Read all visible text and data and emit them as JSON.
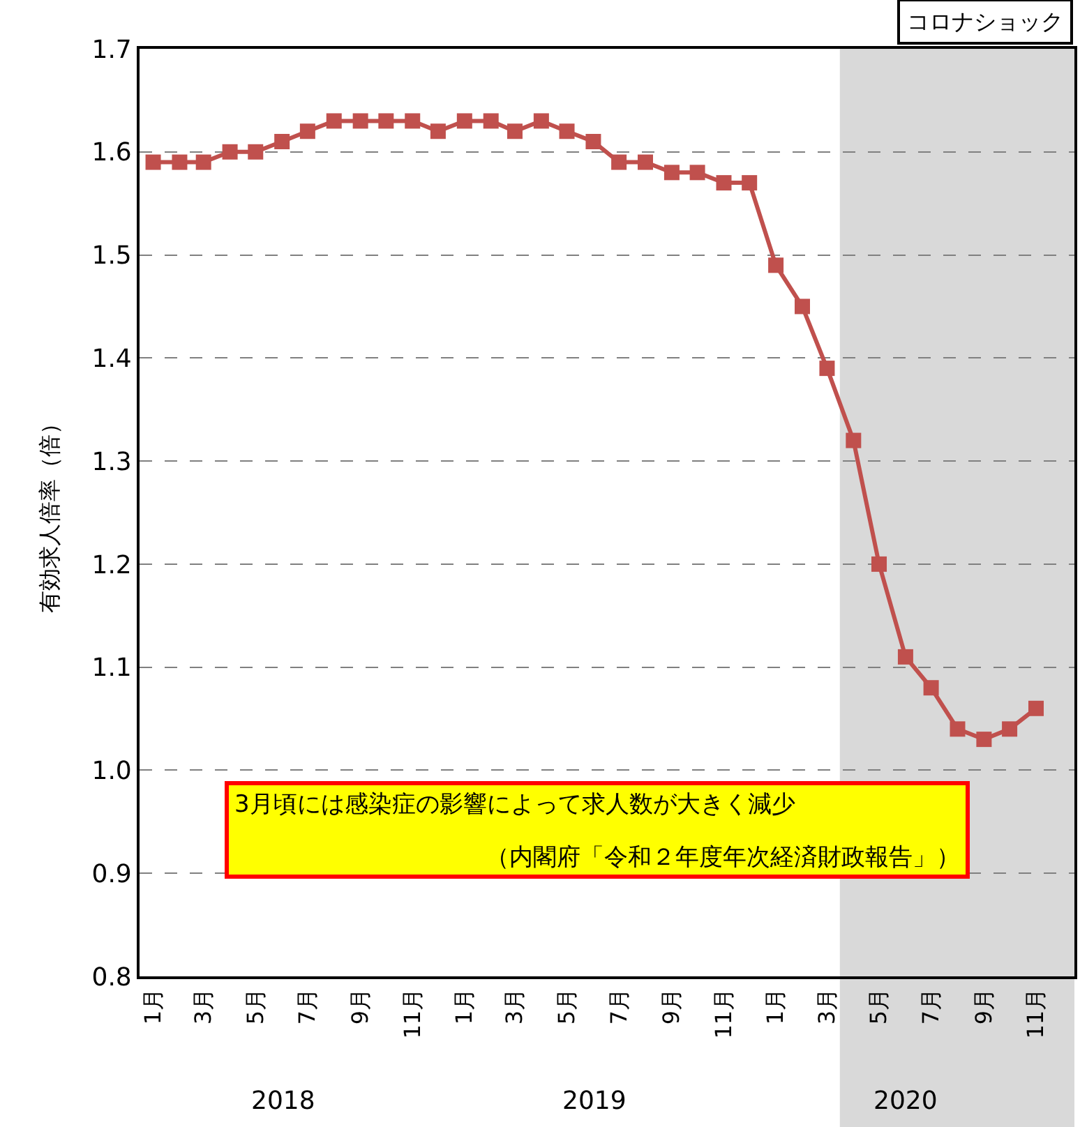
{
  "chart_data": {
    "type": "line",
    "ylabel": "有効求人倍率（倍）",
    "x": [
      "2018-01",
      "2018-02",
      "2018-03",
      "2018-04",
      "2018-05",
      "2018-06",
      "2018-07",
      "2018-08",
      "2018-09",
      "2018-10",
      "2018-11",
      "2018-12",
      "2019-01",
      "2019-02",
      "2019-03",
      "2019-04",
      "2019-05",
      "2019-06",
      "2019-07",
      "2019-08",
      "2019-09",
      "2019-10",
      "2019-11",
      "2019-12",
      "2020-01",
      "2020-02",
      "2020-03",
      "2020-04",
      "2020-05",
      "2020-06",
      "2020-07",
      "2020-08",
      "2020-09",
      "2020-10",
      "2020-11"
    ],
    "series": [
      {
        "color": "#c0504d",
        "values": [
          1.59,
          1.59,
          1.59,
          1.6,
          1.6,
          1.61,
          1.62,
          1.63,
          1.63,
          1.63,
          1.63,
          1.62,
          1.63,
          1.63,
          1.62,
          1.63,
          1.62,
          1.61,
          1.59,
          1.59,
          1.58,
          1.58,
          1.57,
          1.57,
          1.49,
          1.45,
          1.39,
          1.32,
          1.2,
          1.11,
          1.08,
          1.04,
          1.03,
          1.04,
          1.06
        ]
      }
    ],
    "marker": "square",
    "line_style": "solid",
    "grid": "y",
    "legend": false,
    "xlim": [
      "2017-12-16",
      "2020-12-16"
    ],
    "xticks": [
      {
        "value": "2018-01",
        "label": "1月"
      },
      {
        "value": "2018-03",
        "label": "3月"
      },
      {
        "value": "2018-05",
        "label": "5月"
      },
      {
        "value": "2018-07",
        "label": "7月"
      },
      {
        "value": "2018-09",
        "label": "9月"
      },
      {
        "value": "2018-11",
        "label": "11月"
      },
      {
        "value": "2019-01",
        "label": "1月"
      },
      {
        "value": "2019-03",
        "label": "3月"
      },
      {
        "value": "2019-05",
        "label": "5月"
      },
      {
        "value": "2019-07",
        "label": "7月"
      },
      {
        "value": "2019-09",
        "label": "9月"
      },
      {
        "value": "2019-11",
        "label": "11月"
      },
      {
        "value": "2020-01",
        "label": "1月"
      },
      {
        "value": "2020-03",
        "label": "3月"
      },
      {
        "value": "2020-05",
        "label": "5月"
      },
      {
        "value": "2020-07",
        "label": "7月"
      },
      {
        "value": "2020-09",
        "label": "9月"
      },
      {
        "value": "2020-11",
        "label": "11月"
      }
    ],
    "ylim": [
      0.8,
      1.7
    ],
    "yticks": [
      0.8,
      0.9,
      {
        "value": 1.0,
        "label": "1.0"
      },
      1.1,
      1.2,
      1.3,
      1.4,
      1.5,
      1.6,
      1.7
    ],
    "bands": [
      {
        "axis": "x",
        "from": "2020-03-16",
        "to": "2020-12-16",
        "color": "#d9d9d9"
      }
    ],
    "annotations": [
      "コロナショック",
      "3月頃には感染症の影響によって求人数が大きく減少",
      "（内閣府「令和２年度年次経済財政報告」）",
      "2018",
      "2019",
      "2020"
    ]
  }
}
